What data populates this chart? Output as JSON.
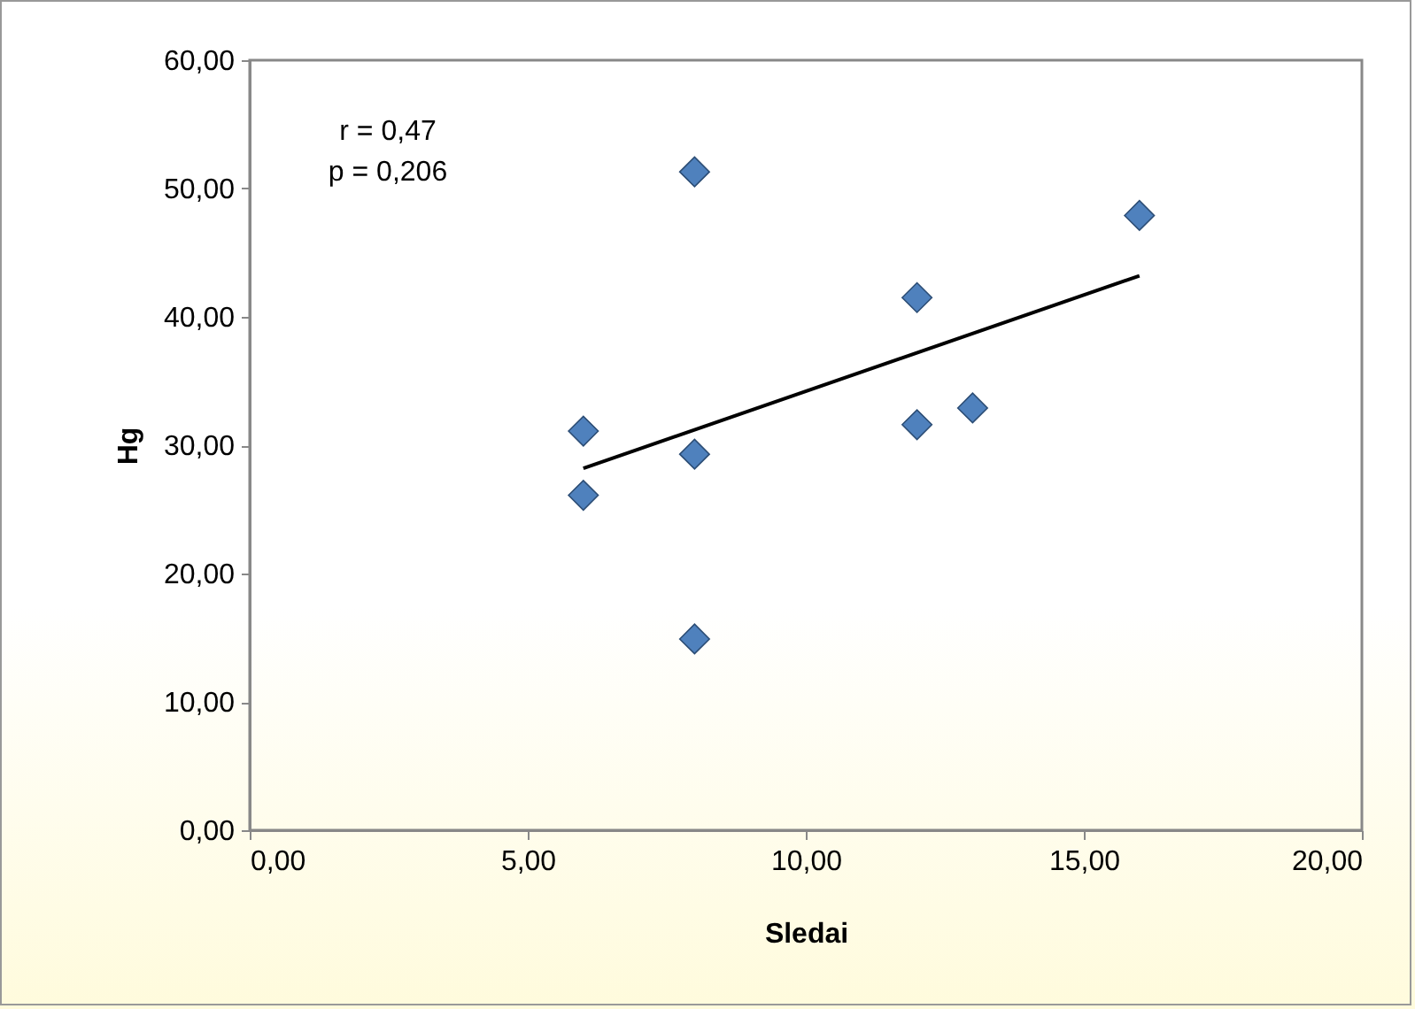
{
  "chart_data": {
    "type": "scatter",
    "xlabel": "Sledai",
    "ylabel": "Hg",
    "marker": "diamond",
    "grid": false,
    "annotations": [
      "r = 0,47",
      "p = 0,206"
    ],
    "xlim": [
      0,
      20
    ],
    "ylim": [
      0,
      60
    ],
    "xticks": [
      {
        "value": 0,
        "label": "0,00"
      },
      {
        "value": 5,
        "label": "5,00"
      },
      {
        "value": 10,
        "label": "10,00"
      },
      {
        "value": 15,
        "label": "15,00"
      },
      {
        "value": 20,
        "label": "20,00"
      }
    ],
    "yticks": [
      {
        "value": 0,
        "label": "0,00"
      },
      {
        "value": 10,
        "label": "10,00"
      },
      {
        "value": 20,
        "label": "20,00"
      },
      {
        "value": 30,
        "label": "30,00"
      },
      {
        "value": 40,
        "label": "40,00"
      },
      {
        "value": 50,
        "label": "50,00"
      },
      {
        "value": 60,
        "label": "60,00"
      }
    ],
    "series": [
      {
        "type": "scatter",
        "color": "#4f81bd",
        "x": [
          6,
          6,
          8,
          8,
          8,
          12,
          12,
          13,
          16
        ],
        "values": [
          31.1,
          26.1,
          51.3,
          29.3,
          14.9,
          41.5,
          31.6,
          32.9,
          47.9
        ]
      },
      {
        "type": "line",
        "marker": "none",
        "color": "#000000",
        "x": [
          6,
          16
        ],
        "values": [
          28.2,
          43.2
        ]
      }
    ]
  }
}
